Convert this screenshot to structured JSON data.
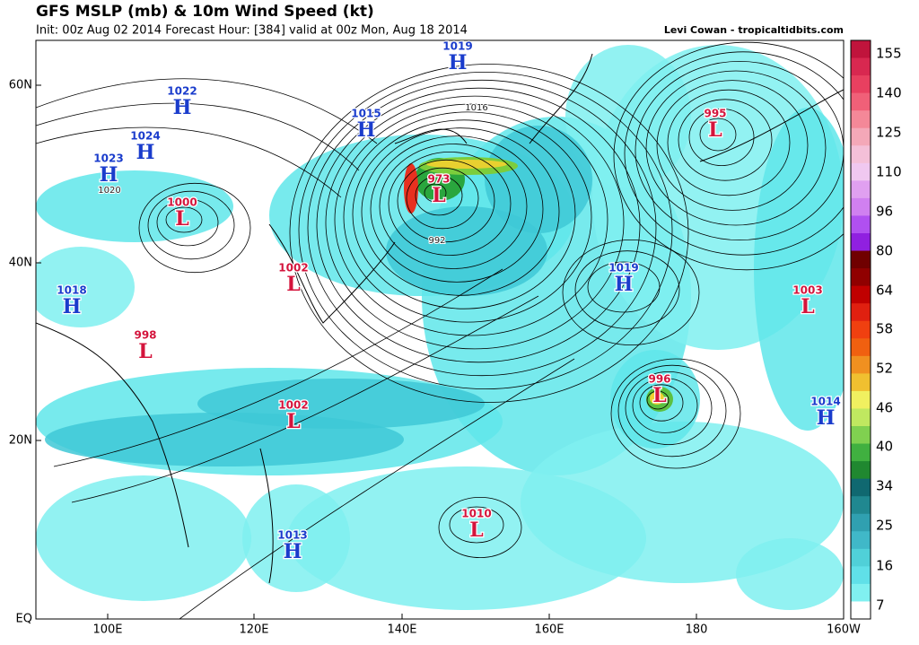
{
  "header": {
    "title": "GFS MSLP (mb) & 10m Wind Speed (kt)",
    "subtitle": "Init: 00z Aug 02 2014 Forecast Hour: [384] valid at 00z Mon, Aug 18 2014",
    "credit": "Levi Cowan - tropicaltidbits.com"
  },
  "map": {
    "lat_labels": [
      "60N",
      "40N",
      "20N",
      "EQ"
    ],
    "lon_labels": [
      "100E",
      "120E",
      "140E",
      "160E",
      "180",
      "160W"
    ],
    "contour_labels": [
      "1016",
      "1020",
      "992"
    ],
    "centers": [
      {
        "value": "1019",
        "type": "H"
      },
      {
        "value": "1022",
        "type": "H"
      },
      {
        "value": "1015",
        "type": "H"
      },
      {
        "value": "1024",
        "type": "H"
      },
      {
        "value": "1023",
        "type": "H"
      },
      {
        "value": "1000",
        "type": "L"
      },
      {
        "value": "973",
        "type": "L"
      },
      {
        "value": "1018",
        "type": "H"
      },
      {
        "value": "1002",
        "type": "L"
      },
      {
        "value": "998",
        "type": "L"
      },
      {
        "value": "1002",
        "type": "L"
      },
      {
        "value": "1013",
        "type": "H"
      },
      {
        "value": "1010",
        "type": "L"
      },
      {
        "value": "1019",
        "type": "H"
      },
      {
        "value": "996",
        "type": "L"
      },
      {
        "value": "995",
        "type": "L"
      },
      {
        "value": "1003",
        "type": "L"
      },
      {
        "value": "1014",
        "type": "H"
      }
    ]
  },
  "colorbar": {
    "ticks": [
      155,
      140,
      125,
      110,
      96,
      80,
      64,
      58,
      52,
      46,
      40,
      34,
      25,
      16,
      7
    ]
  }
}
